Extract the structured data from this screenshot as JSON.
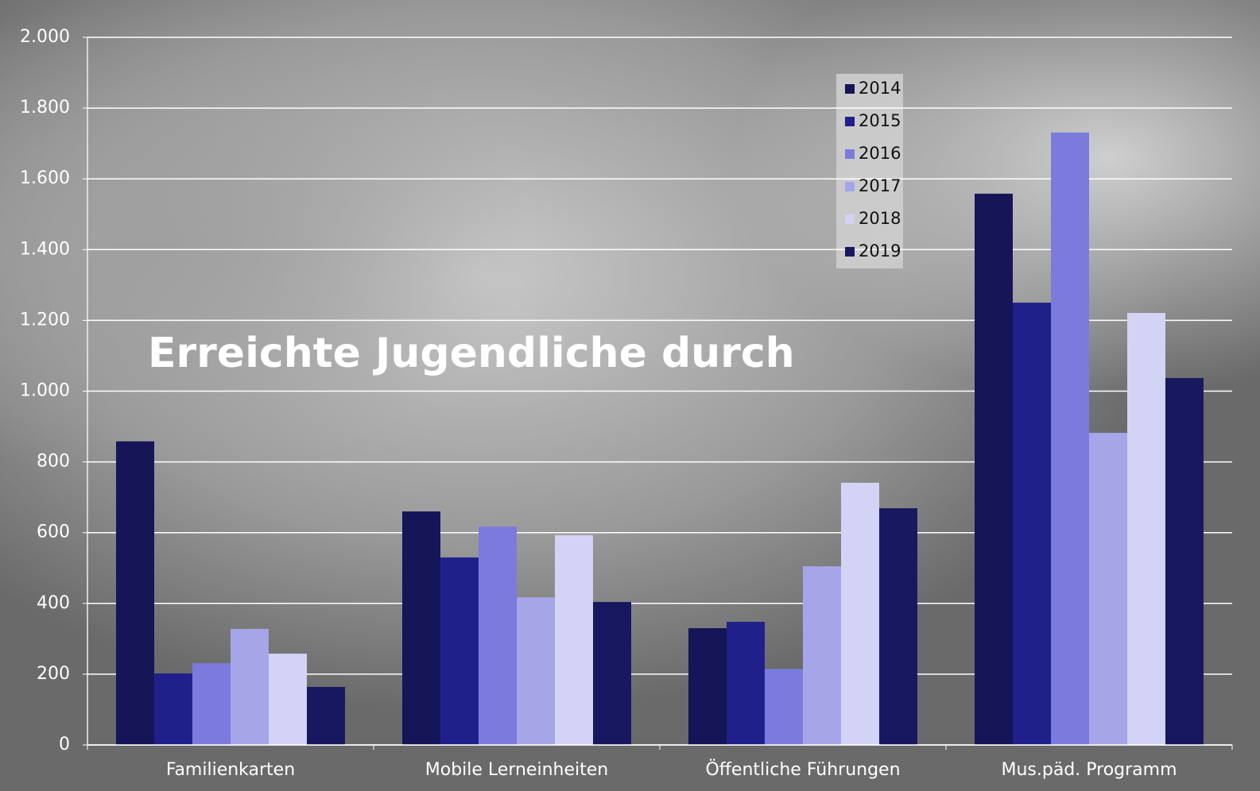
{
  "chart_data": {
    "type": "bar",
    "title": "Erreichte Jugendliche durch",
    "categories": [
      "Familienkarten",
      "Mobile Lerneinheiten",
      "Öffentliche Führungen",
      "Mus.päd. Programm"
    ],
    "series": [
      {
        "name": "2014",
        "color": "#151558",
        "values": [
          858,
          660,
          330,
          1558
        ]
      },
      {
        "name": "2015",
        "color": "#20208a",
        "values": [
          202,
          530,
          348,
          1250
        ]
      },
      {
        "name": "2016",
        "color": "#7b7bdd",
        "values": [
          231,
          617,
          215,
          1731
        ]
      },
      {
        "name": "2017",
        "color": "#a5a5e8",
        "values": [
          328,
          417,
          505,
          882
        ]
      },
      {
        "name": "2018",
        "color": "#d3d3f5",
        "values": [
          258,
          593,
          741,
          1221
        ]
      },
      {
        "name": "2019",
        "color": "#181860",
        "values": [
          164,
          404,
          669,
          1037
        ]
      }
    ],
    "ylim": [
      0,
      2000
    ],
    "yticks": [
      0,
      200,
      400,
      600,
      800,
      {
        "value": 1000,
        "label": "1.000"
      },
      {
        "value": 1200,
        "label": "1.200"
      },
      {
        "value": 1400,
        "label": "1.400"
      },
      {
        "value": 1600,
        "label": "1.600"
      },
      {
        "value": 1800,
        "label": "1.800"
      },
      {
        "value": 2000,
        "label": "2.000"
      }
    ],
    "grid": true
  }
}
